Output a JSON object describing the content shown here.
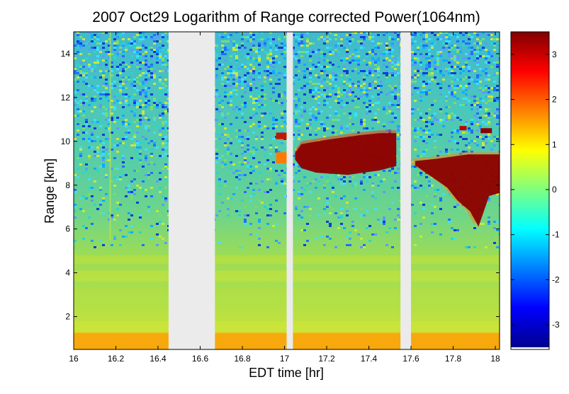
{
  "chart_data": {
    "type": "heatmap",
    "title": "2007 Oct29  Logarithm of Range corrected Power(1064nm)",
    "xlabel": "EDT time [hr]",
    "ylabel": "Range [km]",
    "xlim": [
      16.0,
      18.02
    ],
    "ylim": [
      0.5,
      15.0
    ],
    "x_ticks": [
      16,
      16.2,
      16.4,
      16.6,
      16.8,
      17,
      17.2,
      17.4,
      17.6,
      17.8,
      18
    ],
    "x_tick_labels": [
      "16",
      "16.2",
      "16.4",
      "16.6",
      "16.8",
      "17",
      "17.2",
      "17.4",
      "17.6",
      "17.8",
      "18"
    ],
    "y_ticks": [
      2,
      4,
      6,
      8,
      10,
      12,
      14
    ],
    "y_tick_labels": [
      "2",
      "4",
      "6",
      "8",
      "10",
      "12",
      "14"
    ],
    "colorbar": {
      "range": [
        -3.5,
        3.5
      ],
      "ticks": [
        3,
        2,
        1,
        0,
        -1,
        -2,
        -3
      ],
      "tick_labels": [
        "3",
        "2",
        "1",
        "0",
        "-1",
        "-2",
        "-3"
      ],
      "colormap": "jet"
    },
    "data_gaps_hr": [
      [
        16.45,
        16.67
      ],
      [
        17.01,
        17.04
      ],
      [
        17.55,
        17.6
      ]
    ],
    "cloud_layers": [
      {
        "start_hr": 17.05,
        "end_hr": 17.53,
        "base_km": 8.6,
        "top_km": 10.5
      },
      {
        "start_hr": 17.6,
        "end_hr": 18.02,
        "base_km": 6.2,
        "top_km": 9.5
      }
    ],
    "boundary_layer_top_km": 1.3,
    "gap_color": "#ebebeb"
  }
}
